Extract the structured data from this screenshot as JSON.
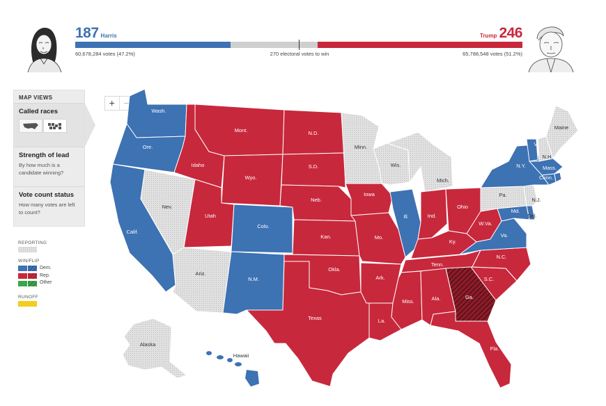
{
  "header": {
    "dem": {
      "ev": "187",
      "name": "Harris",
      "votes": "60,678,284 votes (47.2%)",
      "ev_value": 187
    },
    "rep": {
      "ev": "246",
      "name": "Trump",
      "votes": "65,788,548 votes (51.2%)",
      "ev_value": 246
    },
    "threshold": "270 electoral votes to win",
    "total_ev": 538
  },
  "zoom": {
    "plus": "+",
    "minus": "−"
  },
  "panel": {
    "title": "MAP VIEWS",
    "options": [
      {
        "title": "Called races",
        "desc": "",
        "selected": true
      },
      {
        "title": "Strength of lead",
        "desc": "By how much is a candidate winning?"
      },
      {
        "title": "Vote count status",
        "desc": "How many votes are left to count?"
      }
    ]
  },
  "legend": {
    "reporting": "REPORTING",
    "winflip": "WIN/FLIP",
    "dem": "Dem.",
    "rep": "Rep.",
    "other": "Other",
    "runoff": "RUNOFF"
  },
  "colors": {
    "dem": "#3d72b3",
    "rep": "#c8283c",
    "flip_rep": "#8c1c28",
    "reporting": "#d4d4d4",
    "other": "#3aa64a",
    "runoff": "#f2cd1c"
  },
  "states": {
    "wash": "Wash.",
    "ore": "Ore.",
    "calif": "Calif.",
    "nev": "Nev.",
    "idaho": "Idaho",
    "mont": "Mont.",
    "wyo": "Wyo.",
    "utah": "Utah",
    "colo": "Colo.",
    "ariz": "Ariz.",
    "nm": "N.M.",
    "nd": "N.D.",
    "sd": "S.D.",
    "neb": "Neb.",
    "kan": "Kan.",
    "okla": "Okla.",
    "texas": "Texas",
    "minn": "Minn.",
    "iowa": "Iowa",
    "mo": "Mo.",
    "ark": "Ark.",
    "la": "La.",
    "wis": "Wis.",
    "ill": "Ill.",
    "mich": "Mich.",
    "ind": "Ind.",
    "ohio": "Ohio",
    "ky": "Ky.",
    "tenn": "Tenn.",
    "miss": "Miss.",
    "ala": "Ala.",
    "ga": "Ga.",
    "fla": "Fla.",
    "sc": "S.C.",
    "nc": "N.C.",
    "va": "Va.",
    "wva": "W.Va.",
    "pa": "Pa.",
    "ny": "N.Y.",
    "nj": "N.J.",
    "vt": "Vt.",
    "nh": "N.H.",
    "maine": "Maine",
    "mass": "Mass.",
    "conn": "Conn.",
    "md": "Md.",
    "del": "Del.",
    "alaska": "Alaska",
    "hawaii": "Hawaii"
  }
}
